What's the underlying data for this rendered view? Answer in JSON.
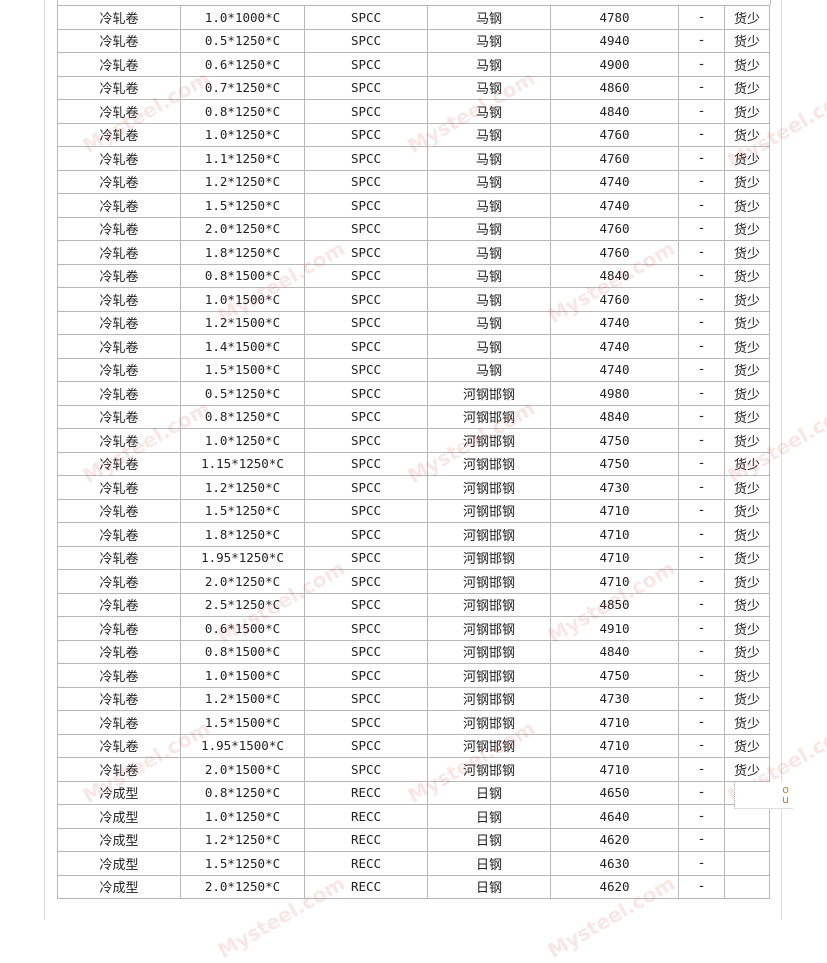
{
  "table": {
    "rows": [
      [
        "冷轧卷",
        "1.0*1000*C",
        "SPCC",
        "马钢",
        "4780",
        "-",
        "货少"
      ],
      [
        "冷轧卷",
        "0.5*1250*C",
        "SPCC",
        "马钢",
        "4940",
        "-",
        "货少"
      ],
      [
        "冷轧卷",
        "0.6*1250*C",
        "SPCC",
        "马钢",
        "4900",
        "-",
        "货少"
      ],
      [
        "冷轧卷",
        "0.7*1250*C",
        "SPCC",
        "马钢",
        "4860",
        "-",
        "货少"
      ],
      [
        "冷轧卷",
        "0.8*1250*C",
        "SPCC",
        "马钢",
        "4840",
        "-",
        "货少"
      ],
      [
        "冷轧卷",
        "1.0*1250*C",
        "SPCC",
        "马钢",
        "4760",
        "-",
        "货少"
      ],
      [
        "冷轧卷",
        "1.1*1250*C",
        "SPCC",
        "马钢",
        "4760",
        "-",
        "货少"
      ],
      [
        "冷轧卷",
        "1.2*1250*C",
        "SPCC",
        "马钢",
        "4740",
        "-",
        "货少"
      ],
      [
        "冷轧卷",
        "1.5*1250*C",
        "SPCC",
        "马钢",
        "4740",
        "-",
        "货少"
      ],
      [
        "冷轧卷",
        "2.0*1250*C",
        "SPCC",
        "马钢",
        "4760",
        "-",
        "货少"
      ],
      [
        "冷轧卷",
        "1.8*1250*C",
        "SPCC",
        "马钢",
        "4760",
        "-",
        "货少"
      ],
      [
        "冷轧卷",
        "0.8*1500*C",
        "SPCC",
        "马钢",
        "4840",
        "-",
        "货少"
      ],
      [
        "冷轧卷",
        "1.0*1500*C",
        "SPCC",
        "马钢",
        "4760",
        "-",
        "货少"
      ],
      [
        "冷轧卷",
        "1.2*1500*C",
        "SPCC",
        "马钢",
        "4740",
        "-",
        "货少"
      ],
      [
        "冷轧卷",
        "1.4*1500*C",
        "SPCC",
        "马钢",
        "4740",
        "-",
        "货少"
      ],
      [
        "冷轧卷",
        "1.5*1500*C",
        "SPCC",
        "马钢",
        "4740",
        "-",
        "货少"
      ],
      [
        "冷轧卷",
        "0.5*1250*C",
        "SPCC",
        "河钢邯钢",
        "4980",
        "-",
        "货少"
      ],
      [
        "冷轧卷",
        "0.8*1250*C",
        "SPCC",
        "河钢邯钢",
        "4840",
        "-",
        "货少"
      ],
      [
        "冷轧卷",
        "1.0*1250*C",
        "SPCC",
        "河钢邯钢",
        "4750",
        "-",
        "货少"
      ],
      [
        "冷轧卷",
        "1.15*1250*C",
        "SPCC",
        "河钢邯钢",
        "4750",
        "-",
        "货少"
      ],
      [
        "冷轧卷",
        "1.2*1250*C",
        "SPCC",
        "河钢邯钢",
        "4730",
        "-",
        "货少"
      ],
      [
        "冷轧卷",
        "1.5*1250*C",
        "SPCC",
        "河钢邯钢",
        "4710",
        "-",
        "货少"
      ],
      [
        "冷轧卷",
        "1.8*1250*C",
        "SPCC",
        "河钢邯钢",
        "4710",
        "-",
        "货少"
      ],
      [
        "冷轧卷",
        "1.95*1250*C",
        "SPCC",
        "河钢邯钢",
        "4710",
        "-",
        "货少"
      ],
      [
        "冷轧卷",
        "2.0*1250*C",
        "SPCC",
        "河钢邯钢",
        "4710",
        "-",
        "货少"
      ],
      [
        "冷轧卷",
        "2.5*1250*C",
        "SPCC",
        "河钢邯钢",
        "4850",
        "-",
        "货少"
      ],
      [
        "冷轧卷",
        "0.6*1500*C",
        "SPCC",
        "河钢邯钢",
        "4910",
        "-",
        "货少"
      ],
      [
        "冷轧卷",
        "0.8*1500*C",
        "SPCC",
        "河钢邯钢",
        "4840",
        "-",
        "货少"
      ],
      [
        "冷轧卷",
        "1.0*1500*C",
        "SPCC",
        "河钢邯钢",
        "4750",
        "-",
        "货少"
      ],
      [
        "冷轧卷",
        "1.2*1500*C",
        "SPCC",
        "河钢邯钢",
        "4730",
        "-",
        "货少"
      ],
      [
        "冷轧卷",
        "1.5*1500*C",
        "SPCC",
        "河钢邯钢",
        "4710",
        "-",
        "货少"
      ],
      [
        "冷轧卷",
        "1.95*1500*C",
        "SPCC",
        "河钢邯钢",
        "4710",
        "-",
        "货少"
      ],
      [
        "冷轧卷",
        "2.0*1500*C",
        "SPCC",
        "河钢邯钢",
        "4710",
        "-",
        "货少"
      ],
      [
        "冷成型",
        "0.8*1250*C",
        "RECC",
        "日钢",
        "4650",
        "-",
        ""
      ],
      [
        "冷成型",
        "1.0*1250*C",
        "RECC",
        "日钢",
        "4640",
        "-",
        ""
      ],
      [
        "冷成型",
        "1.2*1250*C",
        "RECC",
        "日钢",
        "4620",
        "-",
        ""
      ],
      [
        "冷成型",
        "1.5*1250*C",
        "RECC",
        "日钢",
        "4630",
        "-",
        ""
      ],
      [
        "冷成型",
        "2.0*1250*C",
        "RECC",
        "日钢",
        "4620",
        "-",
        ""
      ]
    ]
  },
  "watermark": "Mysteel.com",
  "popup": {
    "chars": [
      "o",
      "u"
    ]
  }
}
